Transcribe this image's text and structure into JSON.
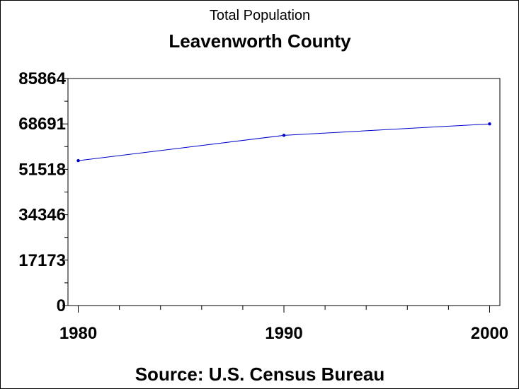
{
  "chart_data": {
    "type": "line",
    "title": "Total Population",
    "subtitle": "Leavenworth County",
    "source": "Source: U.S. Census Bureau",
    "xlabel": "",
    "ylabel": "",
    "x": [
      1980,
      1990,
      2000
    ],
    "x_tick_labels": [
      "1980",
      "1990",
      "2000"
    ],
    "xlim": [
      1979.5,
      2000.5
    ],
    "y_tick_values": [
      0,
      17173,
      34346,
      51518,
      68691,
      85864
    ],
    "y_tick_labels": [
      "0",
      "17173",
      "34346",
      "51518",
      "68691",
      "85864"
    ],
    "ylim": [
      0,
      85864
    ],
    "series": [
      {
        "values": [
          54809,
          64371,
          68691
        ],
        "color": "#0000cc"
      }
    ],
    "grid": false,
    "minor_ticks": true
  }
}
